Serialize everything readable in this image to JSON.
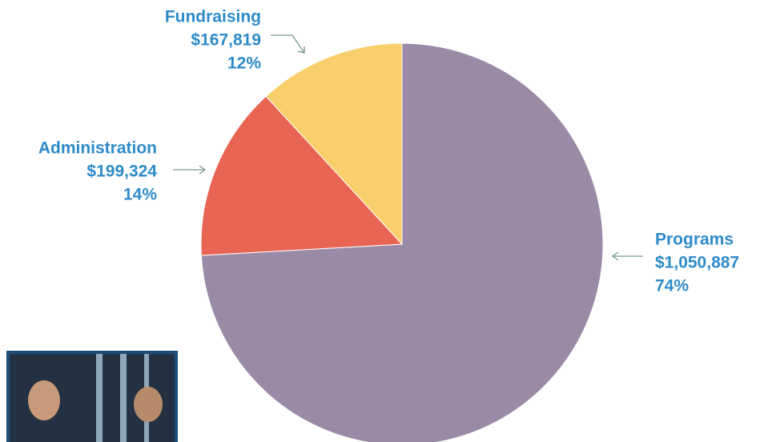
{
  "chart_data": {
    "type": "pie",
    "categories": [
      "Programs",
      "Administration",
      "Fundraising"
    ],
    "values": [
      1050887,
      199324,
      167819
    ],
    "value_labels": [
      "$1,050,887",
      "$199,324",
      "$167,819"
    ],
    "percent_labels": [
      "74%",
      "14%",
      "12%"
    ],
    "colors": [
      "#9a8aa6",
      "#e86554",
      "#f8cf6a"
    ]
  }
}
